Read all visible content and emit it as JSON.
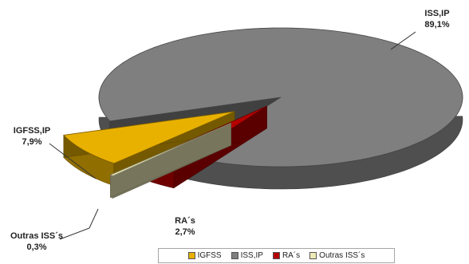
{
  "chart_data": {
    "type": "pie",
    "style": "3d-exploded",
    "title": "",
    "categories": [
      "IGFSS",
      "ISS,IP",
      "RA´s",
      "Outras ISS´s"
    ],
    "values": [
      7.9,
      89.1,
      2.7,
      0.3
    ],
    "labels": [
      {
        "name": "IGFSS,IP",
        "value": "7,9%"
      },
      {
        "name": "ISS,IP",
        "value": "89,1%"
      },
      {
        "name": "RA´s",
        "value": "2,7%"
      },
      {
        "name": "Outras ISS´s",
        "value": "0,3%"
      }
    ],
    "colors": [
      "#e8b100",
      "#7f7f7f",
      "#b50000",
      "#eeeab8"
    ],
    "legend": {
      "position": "bottom",
      "items": [
        "IGFSS",
        "ISS,IP",
        "RA´s",
        "Outras ISS´s"
      ]
    }
  }
}
